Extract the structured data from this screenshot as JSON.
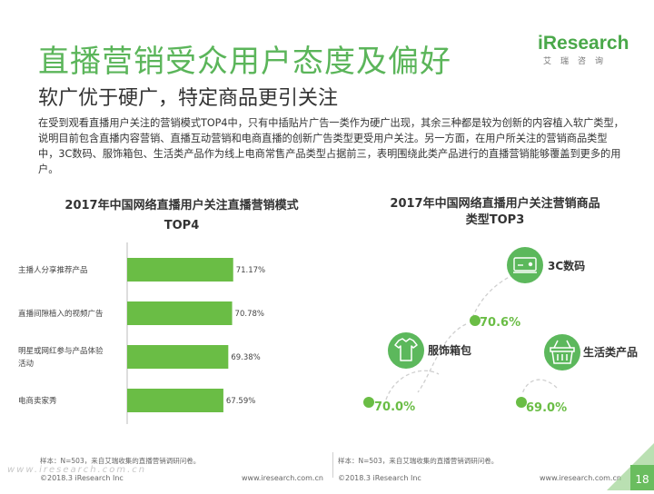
{
  "header": {
    "title": "直播营销受众用户态度及偏好",
    "subtitle": "软广优于硬广，特定商品更引关注"
  },
  "logo": {
    "word_i": "i",
    "word_rest": "Research",
    "cn": "艾瑞咨询"
  },
  "intro": "在受到观看直播用户关注的营销模式TOP4中，只有中插贴片广告一类作为硬广出现，其余三种都是较为创新的内容植入软广类型，说明目前包含直播内容营销、直播互动营销和电商直播的创新广告类型更受用户关注。另一方面，在用户所关注的营销商品类型中，3C数码、服饰箱包、生活类产品作为线上电商常售产品类型占据前三，表明围绕此类产品进行的直播营销能够覆盖到更多的用户。",
  "left_chart_title_line1": "2017年中国网络直播用户关注直播营销模式",
  "left_chart_title_line2": "TOP4",
  "right_chart_title_line1": "2017年中国网络直播用户关注营销商品",
  "right_chart_title_line2": "类型TOP3",
  "footer": {
    "left_source": "样本：N=503，来自艾瑞收集的直播营销调研问卷。",
    "right_source": "样本：N=503，来自艾瑞收集的直播营销调研问卷。",
    "left_copyright": "©2018.3 iResearch Inc",
    "left_url": "www.iresearch.com.cn",
    "right_copyright": "©2018.3 iResearch Inc",
    "right_url": "www.iresearch.com.cn",
    "page": "18",
    "watermark": "www.iresearch.com.cn"
  },
  "colors": {
    "accent": "#5bb55a",
    "bar": "#6abd45",
    "circle": "#5cb85c",
    "percent": "#6abd45"
  },
  "chart_data": [
    {
      "type": "bar",
      "orientation": "horizontal",
      "categories": [
        "主播人分享推荐产品",
        "直播间隙植入的视频广告",
        "明星或网红参与产品体验活动",
        "电商卖家秀"
      ],
      "category_lines": [
        [
          "主播人分享推荐产品"
        ],
        [
          "直播间隙植入的视频广告"
        ],
        [
          "明星或网红参与产品体验",
          "活动"
        ],
        [
          "电商卖家秀"
        ]
      ],
      "values": [
        71.17,
        70.78,
        69.38,
        67.59
      ],
      "value_labels": [
        "71.17%",
        "70.78%",
        "69.38%",
        "67.59%"
      ],
      "grid": false,
      "legend": "none"
    },
    {
      "type": "infographic",
      "items": [
        {
          "name": "3C数码",
          "value": 70.6,
          "label": "70.6%",
          "icon": "digital-device-icon"
        },
        {
          "name": "服饰箱包",
          "value": 70.0,
          "label": "70.0%",
          "icon": "tshirt-icon"
        },
        {
          "name": "生活类产品",
          "value": 69.0,
          "label": "69.0%",
          "icon": "basket-icon"
        }
      ]
    }
  ]
}
